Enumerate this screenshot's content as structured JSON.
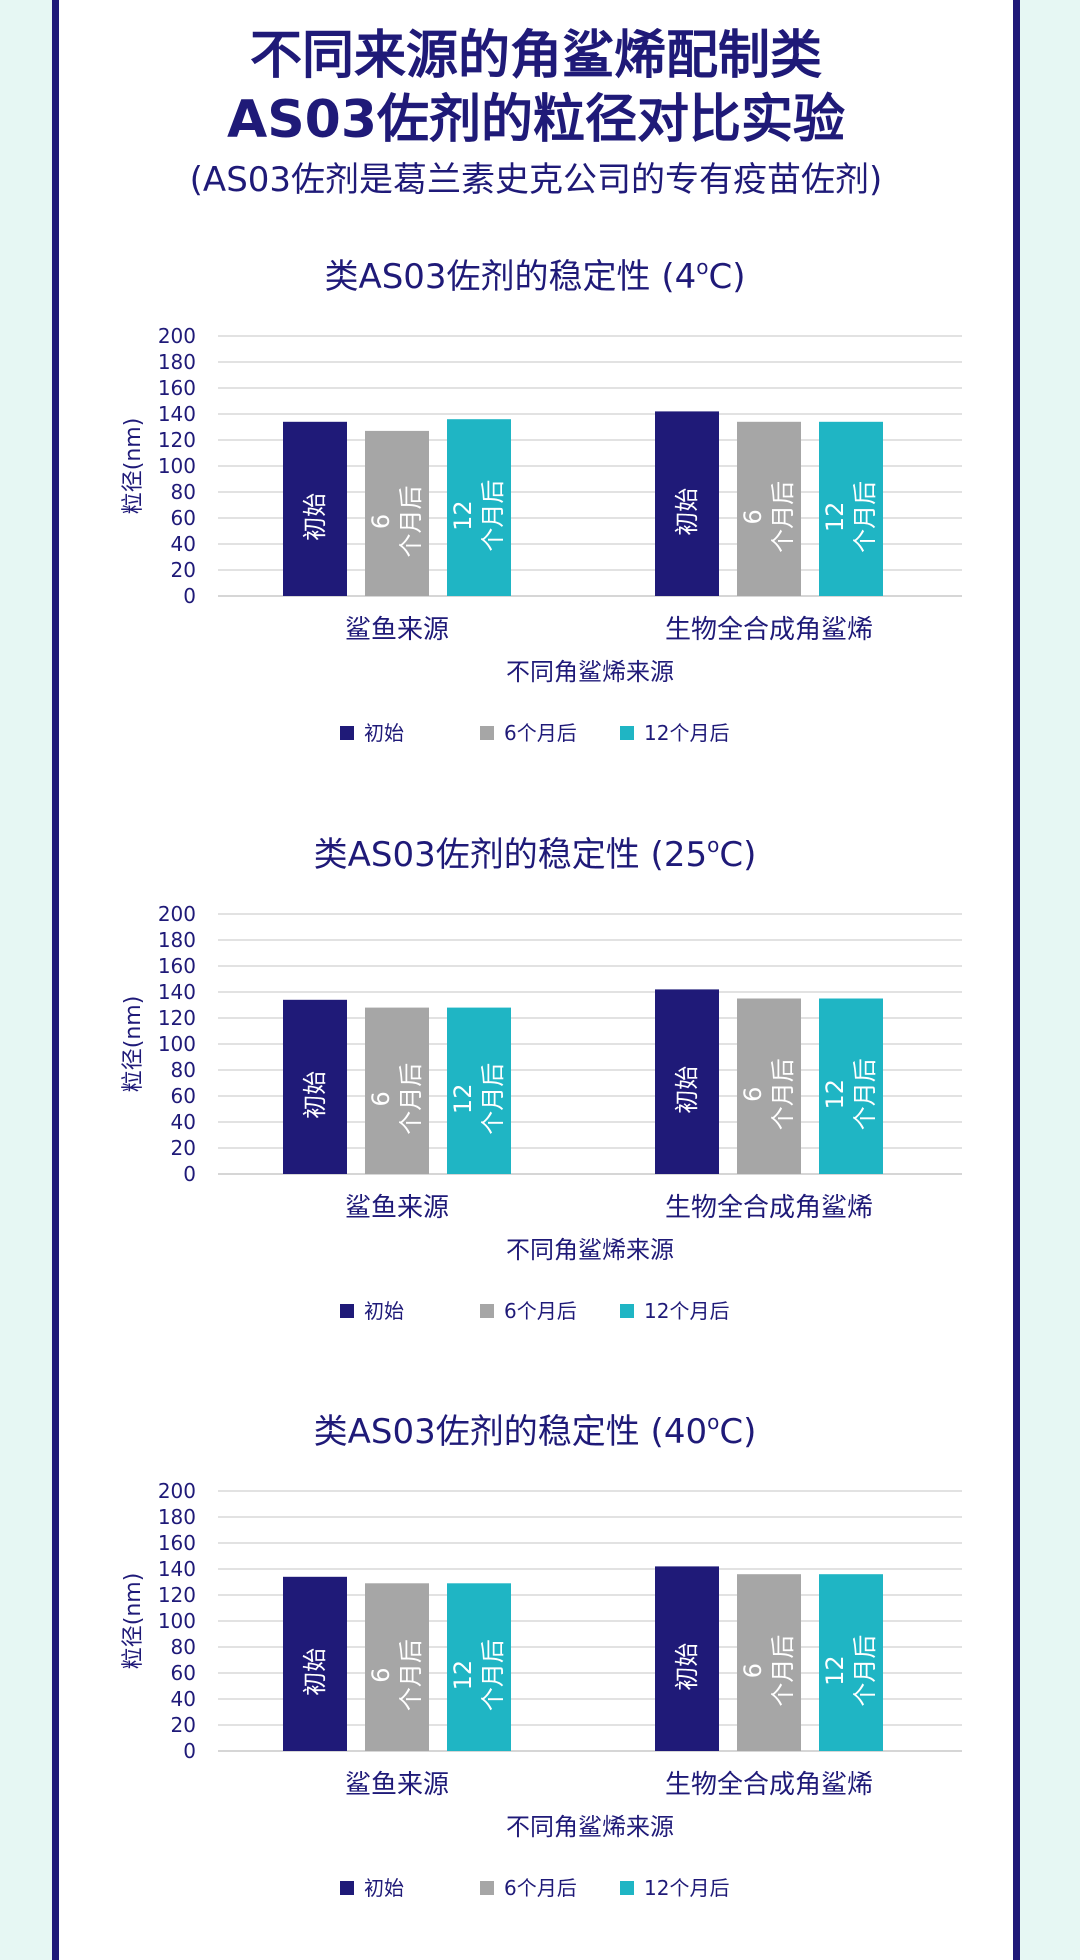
{
  "header": {
    "title_line1": "不同来源的角鲨烯配制类",
    "title_line2": "AS03佐剂的粒径对比实验",
    "subtitle": "(AS03佐剂是葛兰素史克公司的专有疫苗佐剂)"
  },
  "colors": {
    "initial": "#1f1a78",
    "month6": "#a6a6a6",
    "month12": "#1fb5c4",
    "text": "#1f1a78",
    "grid": "#d9d9d9"
  },
  "chart_data": [
    {
      "type": "bar",
      "title": "类AS03佐剂的稳定性 (4",
      "title_sup": "o",
      "title_suffix": "C)",
      "categories": [
        "鲨鱼来源",
        "生物全合成角鲨烯"
      ],
      "xlabel": "不同角鲨烯来源",
      "ylabel": "粒径(nm)",
      "ylim": [
        0,
        200
      ],
      "yticks": [
        "200",
        "180",
        "160",
        "140",
        "120",
        "100",
        "80",
        "60",
        "40",
        "20",
        "0"
      ],
      "series": [
        {
          "name": "初始",
          "bar_label": [
            "初始"
          ],
          "values": [
            134,
            142
          ]
        },
        {
          "name": "6个月后",
          "bar_label": [
            "6",
            "个月后"
          ],
          "values": [
            127,
            134
          ]
        },
        {
          "name": "12个月后",
          "bar_label": [
            "12",
            "个月后"
          ],
          "values": [
            136,
            134
          ]
        }
      ],
      "legend_position": "bottom"
    },
    {
      "type": "bar",
      "title": "类AS03佐剂的稳定性 (25",
      "title_sup": "o",
      "title_suffix": "C)",
      "categories": [
        "鲨鱼来源",
        "生物全合成角鲨烯"
      ],
      "xlabel": "不同角鲨烯来源",
      "ylabel": "粒径(nm)",
      "ylim": [
        0,
        200
      ],
      "yticks": [
        "200",
        "180",
        "160",
        "140",
        "120",
        "100",
        "80",
        "60",
        "40",
        "20",
        "0"
      ],
      "series": [
        {
          "name": "初始",
          "bar_label": [
            "初始"
          ],
          "values": [
            134,
            142
          ]
        },
        {
          "name": "6个月后",
          "bar_label": [
            "6",
            "个月后"
          ],
          "values": [
            128,
            135
          ]
        },
        {
          "name": "12个月后",
          "bar_label": [
            "12",
            "个月后"
          ],
          "values": [
            128,
            135
          ]
        }
      ],
      "legend_position": "bottom"
    },
    {
      "type": "bar",
      "title": "类AS03佐剂的稳定性 (40",
      "title_sup": "o",
      "title_suffix": "C)",
      "categories": [
        "鲨鱼来源",
        "生物全合成角鲨烯"
      ],
      "xlabel": "不同角鲨烯来源",
      "ylabel": "粒径(nm)",
      "ylim": [
        0,
        200
      ],
      "yticks": [
        "200",
        "180",
        "160",
        "140",
        "120",
        "100",
        "80",
        "60",
        "40",
        "20",
        "0"
      ],
      "series": [
        {
          "name": "初始",
          "bar_label": [
            "初始"
          ],
          "values": [
            134,
            142
          ]
        },
        {
          "name": "6个月后",
          "bar_label": [
            "6",
            "个月后"
          ],
          "values": [
            129,
            136
          ]
        },
        {
          "name": "12个月后",
          "bar_label": [
            "12",
            "个月后"
          ],
          "values": [
            129,
            136
          ]
        }
      ],
      "legend_position": "bottom"
    }
  ]
}
